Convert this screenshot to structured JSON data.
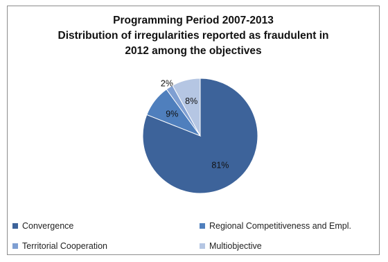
{
  "chart_data": {
    "type": "pie",
    "title": [
      "Programming Period 2007-2013",
      "Distribution of irregularities reported as fraudulent in",
      "2012 among the objectives"
    ],
    "categories": [
      "Convergence",
      "Regional Competitiveness and Empl.",
      "Territorial Cooperation",
      "Multiobjective"
    ],
    "values": [
      81,
      9,
      2,
      8
    ],
    "value_labels": [
      "81%",
      "9%",
      "2%",
      "8%"
    ],
    "colors": [
      "#3d639a",
      "#4f7fbd",
      "#7f9fd2",
      "#b5c6e3"
    ],
    "legend_position": "bottom"
  }
}
